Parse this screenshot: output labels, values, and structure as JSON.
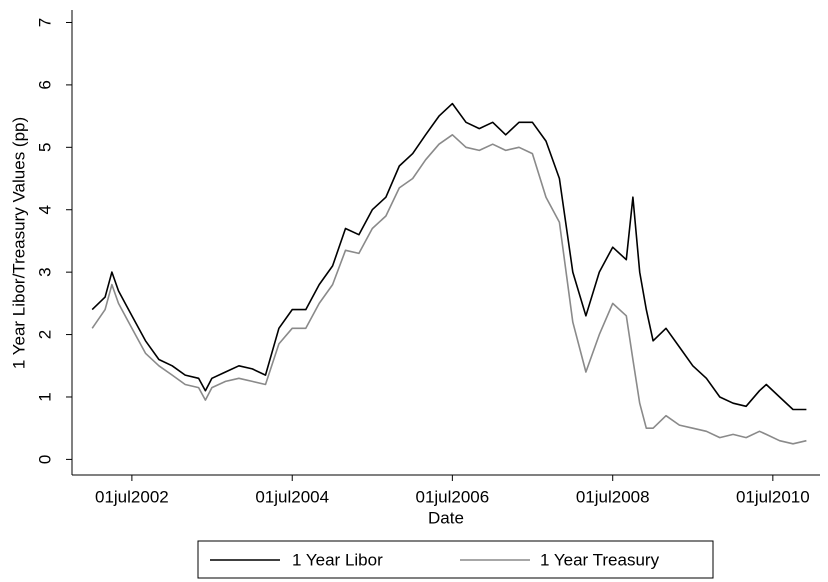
{
  "chart_data": {
    "type": "line",
    "ylabel": "1 Year Libor/Treasury Values (pp)",
    "xlabel": "Date",
    "x": [
      "2002-01-01",
      "2002-03-01",
      "2002-04-01",
      "2002-05-01",
      "2002-07-01",
      "2002-09-01",
      "2002-11-01",
      "2003-01-01",
      "2003-03-01",
      "2003-05-01",
      "2003-06-01",
      "2003-07-01",
      "2003-09-01",
      "2003-11-01",
      "2004-01-01",
      "2004-03-01",
      "2004-05-01",
      "2004-07-01",
      "2004-09-01",
      "2004-11-01",
      "2005-01-01",
      "2005-03-01",
      "2005-05-01",
      "2005-07-01",
      "2005-09-01",
      "2005-11-01",
      "2006-01-01",
      "2006-03-01",
      "2006-05-01",
      "2006-07-01",
      "2006-09-01",
      "2006-11-01",
      "2007-01-01",
      "2007-03-01",
      "2007-05-01",
      "2007-07-01",
      "2007-09-01",
      "2007-11-01",
      "2008-01-01",
      "2008-03-01",
      "2008-05-01",
      "2008-07-01",
      "2008-09-01",
      "2008-10-01",
      "2008-11-01",
      "2008-12-01",
      "2009-01-01",
      "2009-03-01",
      "2009-05-01",
      "2009-07-01",
      "2009-09-01",
      "2009-11-01",
      "2010-01-01",
      "2010-03-01",
      "2010-05-01",
      "2010-06-01",
      "2010-08-01",
      "2010-10-01",
      "2010-12-01"
    ],
    "series": [
      {
        "name": "1 Year Libor",
        "color": "#000000",
        "values": [
          2.4,
          2.6,
          3.0,
          2.7,
          2.3,
          1.9,
          1.6,
          1.5,
          1.35,
          1.3,
          1.1,
          1.3,
          1.4,
          1.5,
          1.45,
          1.35,
          2.1,
          2.4,
          2.4,
          2.8,
          3.1,
          3.7,
          3.6,
          4.0,
          4.2,
          4.7,
          4.9,
          5.2,
          5.5,
          5.7,
          5.4,
          5.3,
          5.4,
          5.2,
          5.4,
          5.4,
          5.1,
          4.5,
          3.0,
          2.3,
          3.0,
          3.4,
          3.2,
          4.2,
          3.0,
          2.4,
          1.9,
          2.1,
          1.8,
          1.5,
          1.3,
          1.0,
          0.9,
          0.85,
          1.1,
          1.2,
          1.0,
          0.8,
          0.8
        ]
      },
      {
        "name": "1 Year Treasury",
        "color": "#8a8a8a",
        "values": [
          2.1,
          2.4,
          2.8,
          2.5,
          2.1,
          1.7,
          1.5,
          1.35,
          1.2,
          1.15,
          0.95,
          1.15,
          1.25,
          1.3,
          1.25,
          1.2,
          1.85,
          2.1,
          2.1,
          2.5,
          2.8,
          3.35,
          3.3,
          3.7,
          3.9,
          4.35,
          4.5,
          4.8,
          5.05,
          5.2,
          5.0,
          4.95,
          5.05,
          4.95,
          5.0,
          4.9,
          4.2,
          3.8,
          2.2,
          1.4,
          2.0,
          2.5,
          2.3,
          1.6,
          0.9,
          0.5,
          0.5,
          0.7,
          0.55,
          0.5,
          0.45,
          0.35,
          0.4,
          0.35,
          0.45,
          0.4,
          0.3,
          0.25,
          0.3
        ]
      }
    ],
    "xlim": [
      "2001-10-01",
      "2011-02-01"
    ],
    "xticks": [
      {
        "value": "2002-07-01",
        "label": "01jul2002"
      },
      {
        "value": "2004-07-01",
        "label": "01jul2004"
      },
      {
        "value": "2006-07-01",
        "label": "01jul2006"
      },
      {
        "value": "2008-07-01",
        "label": "01jul2008"
      },
      {
        "value": "2010-07-01",
        "label": "01jul2010"
      }
    ],
    "ylim": [
      -0.25,
      7.2
    ],
    "yticks": [
      0,
      1,
      2,
      3,
      4,
      5,
      6,
      7
    ],
    "grid": false,
    "legend": "bottom"
  }
}
